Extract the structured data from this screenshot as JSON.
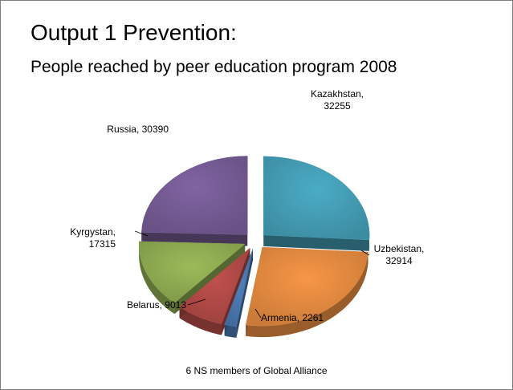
{
  "slide": {
    "title": "Output 1 Prevention:",
    "subtitle": "People reached by peer education program 2008"
  },
  "chart_data": {
    "type": "pie",
    "style": "exploded 3d",
    "caption": "6 NS members of Global Alliance",
    "slices": [
      {
        "name": "Kazakhstan",
        "value": 32255,
        "color": "#4aacc6",
        "label_lines": [
          "Kazakhstan,",
          "32255"
        ]
      },
      {
        "name": "Uzbekistan",
        "value": 32914,
        "color": "#f79646",
        "label_lines": [
          "Uzbekistan,",
          "32914"
        ]
      },
      {
        "name": "Armenia",
        "value": 2261,
        "color": "#4f81bd",
        "label_lines": [
          "Armenia, 2261"
        ]
      },
      {
        "name": "Belarus",
        "value": 9013,
        "color": "#c0504d",
        "label_lines": [
          "Belarus, 9013"
        ]
      },
      {
        "name": "Kyrgystan",
        "value": 17315,
        "color": "#9bbb59",
        "label_lines": [
          "Kyrgystan,",
          "17315"
        ]
      },
      {
        "name": "Russia",
        "value": 30390,
        "color": "#8064a2",
        "label_lines": [
          "Russia, 30390"
        ]
      }
    ]
  }
}
